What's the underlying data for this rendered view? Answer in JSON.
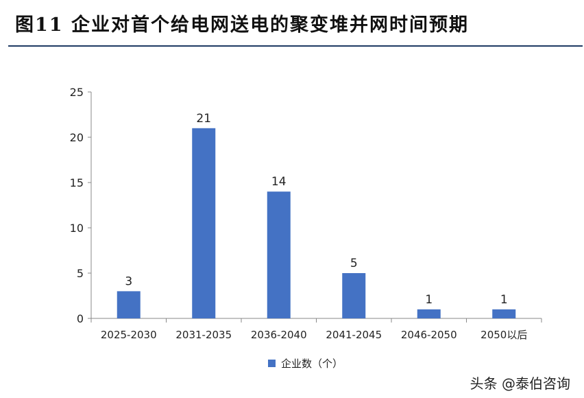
{
  "title": "图11 企业对首个给电网送电的聚变堆并网时间预期",
  "watermark": "头条 @泰伯咨询",
  "colors": {
    "bar": "#4472C4",
    "rule": "#1f3a63",
    "axis": "#888888"
  },
  "chart_data": {
    "type": "bar",
    "categories": [
      "2025-2030",
      "2031-2035",
      "2036-2040",
      "2041-2045",
      "2046-2050",
      "2050以后"
    ],
    "series": [
      {
        "name": "企业数（个）",
        "values": [
          3,
          21,
          14,
          5,
          1,
          1
        ]
      }
    ],
    "ylim": [
      0,
      25
    ],
    "yticks": [
      0,
      5,
      10,
      15,
      20,
      25
    ],
    "data_labels": true,
    "grid": false,
    "legend": "bottom-center"
  }
}
